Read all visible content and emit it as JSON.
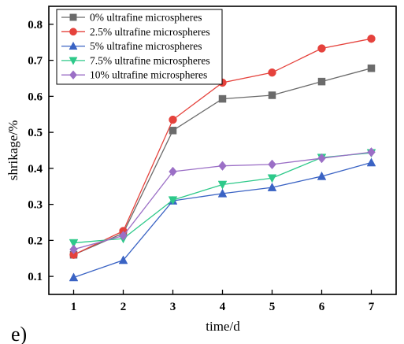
{
  "panel_label": "e)",
  "chart_data": {
    "type": "line",
    "xlabel": "time/d",
    "ylabel": "shrikage/%",
    "x": [
      1,
      2,
      3,
      4,
      5,
      6,
      7
    ],
    "xlim": [
      0.5,
      7.5
    ],
    "ylim": [
      0.05,
      0.85
    ],
    "xticks": [
      1,
      2,
      3,
      4,
      5,
      6,
      7
    ],
    "yticks": [
      0.1,
      0.2,
      0.3,
      0.4,
      0.5,
      0.6,
      0.7,
      0.8
    ],
    "grid": false,
    "legend_position": "top-left",
    "series": [
      {
        "name": "0% ultrafine microspheres",
        "color": "#6b6b6b",
        "marker": "square",
        "values": [
          0.16,
          0.22,
          0.505,
          0.593,
          0.603,
          0.641,
          0.678
        ]
      },
      {
        "name": "2.5% ultrafine microspheres",
        "color": "#e5423c",
        "marker": "circle",
        "values": [
          0.16,
          0.226,
          0.535,
          0.638,
          0.666,
          0.733,
          0.76
        ]
      },
      {
        "name": "5% ultrafine microspheres",
        "color": "#3a63c4",
        "marker": "triangle-up",
        "values": [
          0.097,
          0.145,
          0.31,
          0.33,
          0.347,
          0.378,
          0.416
        ]
      },
      {
        "name": "7.5% ultrafine microspheres",
        "color": "#2ec98a",
        "marker": "triangle-down",
        "values": [
          0.193,
          0.205,
          0.312,
          0.355,
          0.373,
          0.43,
          0.443
        ]
      },
      {
        "name": "10% ultrafine microspheres",
        "color": "#9b6fc6",
        "marker": "diamond",
        "values": [
          0.175,
          0.213,
          0.391,
          0.407,
          0.411,
          0.428,
          0.445
        ]
      }
    ]
  }
}
